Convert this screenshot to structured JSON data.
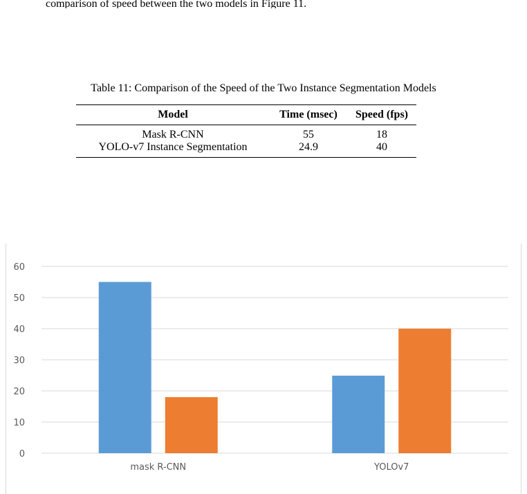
{
  "paper": {
    "top_text": "comparison of speed between the two models in Figure 11.",
    "table_caption": "Table 11: Comparison of the Speed of the Two Instance Segmentation Models",
    "table": {
      "headers": [
        "Model",
        "Time (msec)",
        "Speed (fps)"
      ],
      "rows": [
        [
          "Mask R-CNN",
          "55",
          "18"
        ],
        [
          "YOLO-v7 Instance Segmentation",
          "24.9",
          "40"
        ]
      ]
    }
  },
  "chart_data": {
    "type": "bar",
    "categories": [
      "mask R-CNN",
      "YOLOv7"
    ],
    "series": [
      {
        "values": [
          55,
          24.9
        ],
        "color": "#5b9bd5"
      },
      {
        "values": [
          18,
          40
        ],
        "color": "#ed7d31"
      }
    ],
    "ylim": [
      0,
      60
    ],
    "yticks": [
      0,
      10,
      20,
      30,
      40,
      50,
      60
    ],
    "grid": true,
    "gridColor": "#d9d9d9"
  }
}
